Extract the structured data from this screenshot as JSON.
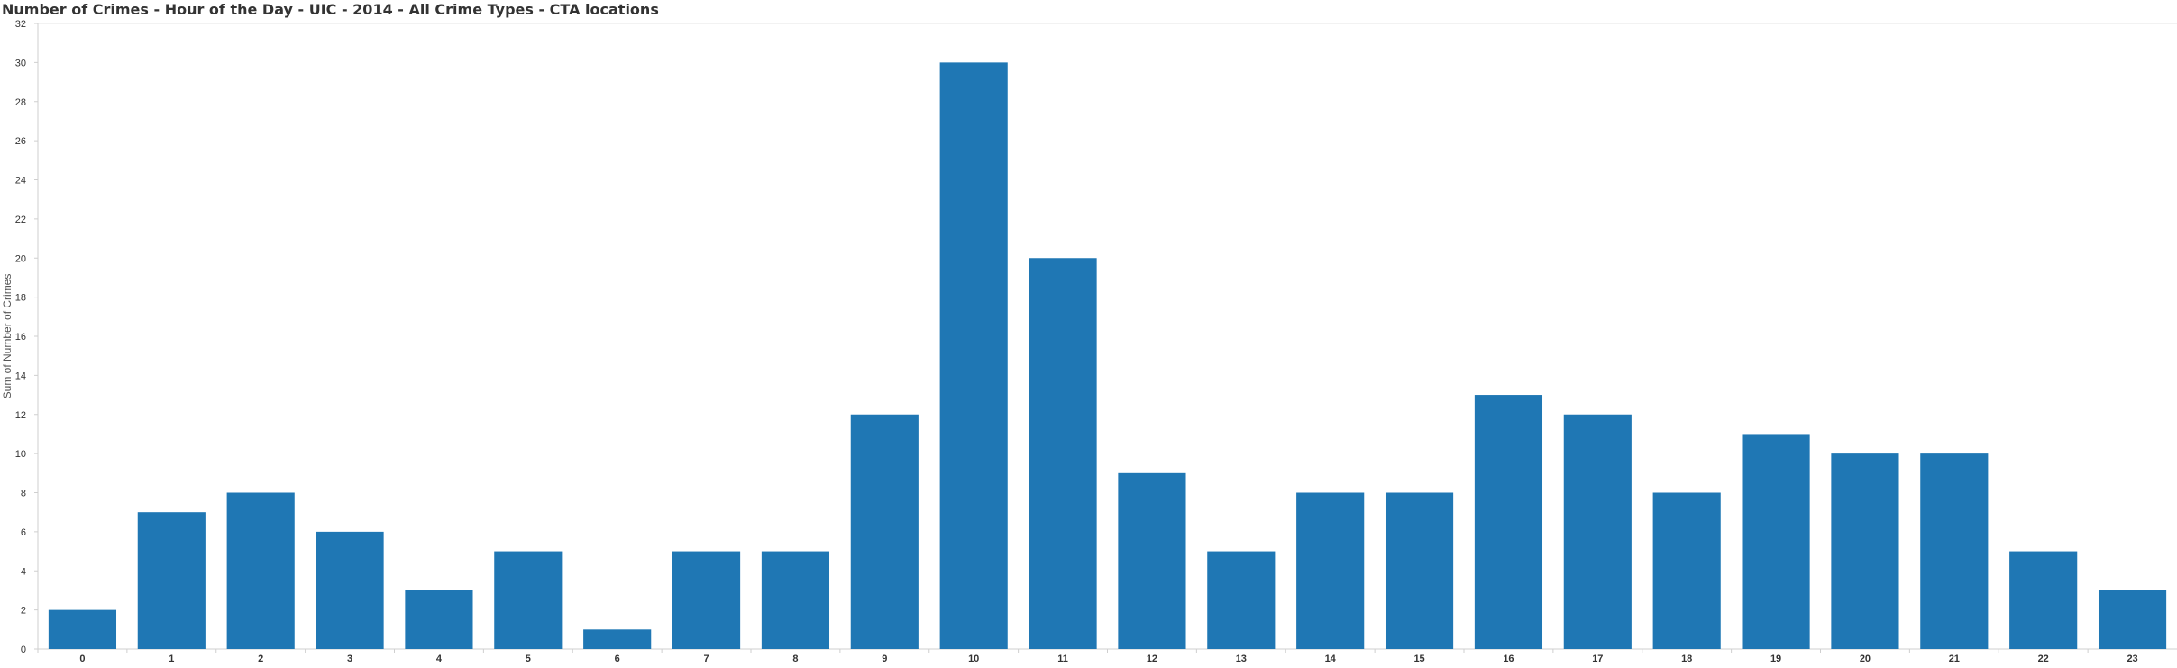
{
  "title": "Number of Crimes - Hour of the Day - UIC - 2014 - All Crime Types - CTA locations",
  "chart_data": {
    "type": "bar",
    "title": "Number of Crimes - Hour of the Day - UIC - 2014 - All Crime Types - CTA locations",
    "xlabel": "",
    "ylabel": "Sum of Number of Crimes",
    "categories": [
      "0",
      "1",
      "2",
      "3",
      "4",
      "5",
      "6",
      "7",
      "8",
      "9",
      "10",
      "11",
      "12",
      "13",
      "14",
      "15",
      "16",
      "17",
      "18",
      "19",
      "20",
      "21",
      "22",
      "23"
    ],
    "values": [
      2,
      7,
      8,
      6,
      3,
      5,
      1,
      5,
      5,
      12,
      30,
      20,
      9,
      5,
      8,
      8,
      13,
      12,
      8,
      11,
      10,
      10,
      5,
      3
    ],
    "ylim": [
      0,
      32
    ],
    "yticks": [
      0,
      2,
      4,
      6,
      8,
      10,
      12,
      14,
      16,
      18,
      20,
      22,
      24,
      26,
      28,
      30,
      32
    ],
    "bar_color": "#1f77b4",
    "grid": false,
    "legend": "none"
  }
}
